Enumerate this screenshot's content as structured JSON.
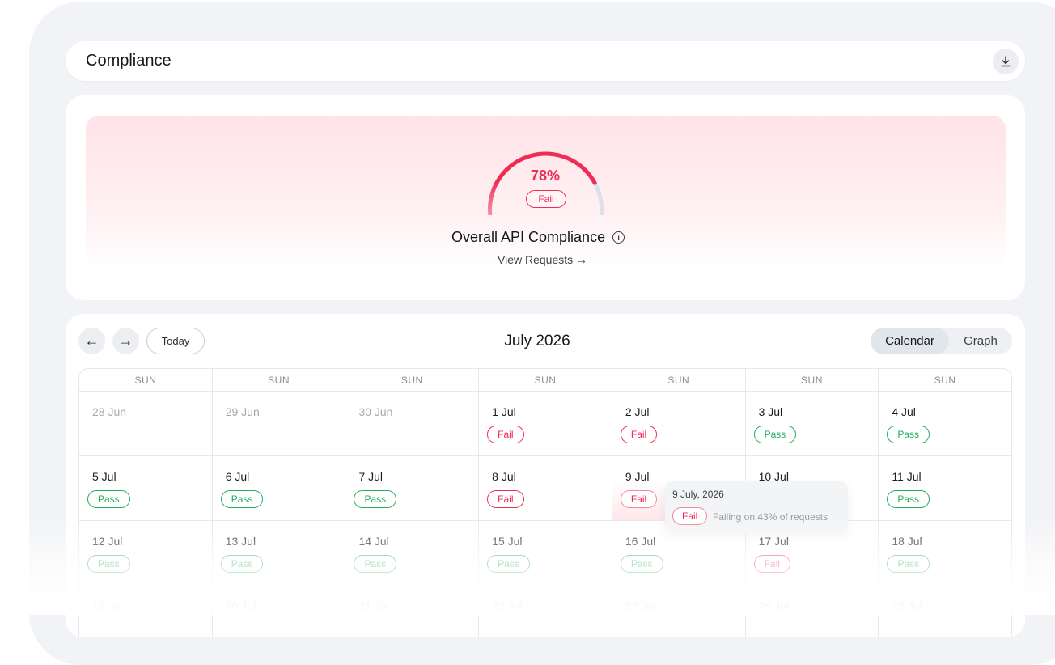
{
  "header": {
    "title": "Compliance",
    "download_icon": "download-icon"
  },
  "summary": {
    "percent_label": "78%",
    "percent_value": 78,
    "status": "Fail",
    "title": "Overall API Compliance",
    "view_link": "View Requests →"
  },
  "calendar": {
    "prev_icon": "arrow-left-icon",
    "next_icon": "arrow-right-icon",
    "today_label": "Today",
    "month_label": "July 2026",
    "view_options": [
      "Calendar",
      "Graph"
    ],
    "active_view": "Calendar",
    "day_headers": [
      "SUN",
      "SUN",
      "SUN",
      "SUN",
      "SUN",
      "SUN",
      "SUN"
    ],
    "weeks": [
      [
        {
          "label": "28 Jun",
          "status": "",
          "other": true
        },
        {
          "label": "29 Jun",
          "status": "",
          "other": true
        },
        {
          "label": "30 Jun",
          "status": "",
          "other": true
        },
        {
          "label": "1 Jul",
          "status": "Fail"
        },
        {
          "label": "2 Jul",
          "status": "Fail"
        },
        {
          "label": "3 Jul",
          "status": "Pass"
        },
        {
          "label": "4 Jul",
          "status": "Pass"
        }
      ],
      [
        {
          "label": "5 Jul",
          "status": "Pass"
        },
        {
          "label": "6 Jul",
          "status": "Pass"
        },
        {
          "label": "7 Jul",
          "status": "Pass"
        },
        {
          "label": "8 Jul",
          "status": "Fail"
        },
        {
          "label": "9 Jul",
          "status": "Fail",
          "hover": true
        },
        {
          "label": "10 Jul",
          "status": ""
        },
        {
          "label": "11 Jul",
          "status": "Pass"
        }
      ],
      [
        {
          "label": "12 Jul",
          "status": "Pass"
        },
        {
          "label": "13 Jul",
          "status": "Pass"
        },
        {
          "label": "14 Jul",
          "status": "Pass"
        },
        {
          "label": "15 Jul",
          "status": "Pass"
        },
        {
          "label": "16 Jul",
          "status": "Pass"
        },
        {
          "label": "17 Jul",
          "status": "Fail"
        },
        {
          "label": "18 Jul",
          "status": "Pass"
        }
      ],
      [
        {
          "label": "19 Jul",
          "status": ""
        },
        {
          "label": "20 Jul",
          "status": ""
        },
        {
          "label": "21 Jul",
          "status": ""
        },
        {
          "label": "22 Jul",
          "status": ""
        },
        {
          "label": "23 Jul",
          "status": ""
        },
        {
          "label": "24 Jul",
          "status": ""
        },
        {
          "label": "25 Jul",
          "status": ""
        }
      ]
    ]
  },
  "tooltip": {
    "date": "9 July, 2026",
    "status": "Fail",
    "description": "Failing on 43% of requests"
  },
  "colors": {
    "fail": "#ef2b56",
    "pass": "#1fae5b",
    "gauge_track": "#d9e2ea"
  }
}
